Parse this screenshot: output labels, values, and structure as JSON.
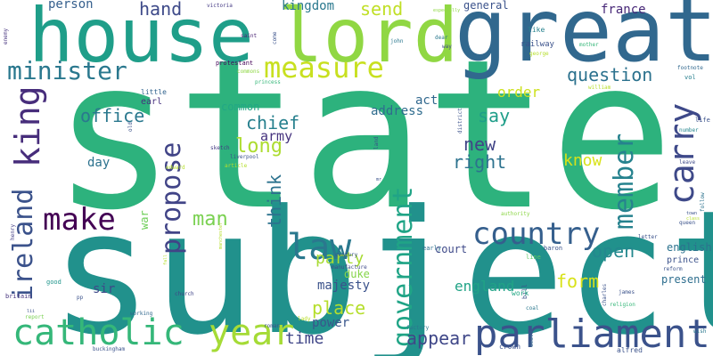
{
  "words": [
    {
      "text": "state",
      "color": "#2db27d"
    },
    {
      "text": "subject",
      "color": "#21918c"
    },
    {
      "text": "great",
      "color": "#31688e"
    },
    {
      "text": "house",
      "color": "#1f9e89"
    },
    {
      "text": "lord",
      "color": "#90d743"
    },
    {
      "text": "parliament",
      "color": "#3b528b"
    },
    {
      "text": "catholic",
      "color": "#35b779"
    },
    {
      "text": "year",
      "color": "#a5db36"
    },
    {
      "text": "government",
      "color": "#20a486"
    },
    {
      "text": "country",
      "color": "#355f8d"
    },
    {
      "text": "law",
      "color": "#2a788e"
    },
    {
      "text": "make",
      "color": "#440154"
    },
    {
      "text": "measure",
      "color": "#c8e020"
    },
    {
      "text": "minister",
      "color": "#2a788e"
    },
    {
      "text": "king",
      "color": "#472d7b"
    },
    {
      "text": "ireland",
      "color": "#3b528b"
    },
    {
      "text": "propose",
      "color": "#414487"
    },
    {
      "text": "carry",
      "color": "#3e4989"
    },
    {
      "text": "member",
      "color": "#26828e"
    },
    {
      "text": "question",
      "color": "#2c728e"
    },
    {
      "text": "office",
      "color": "#2a788e"
    },
    {
      "text": "chief",
      "color": "#27808e"
    },
    {
      "text": "army",
      "color": "#46337e"
    },
    {
      "text": "long",
      "color": "#addc30"
    },
    {
      "text": "man",
      "color": "#7ad151"
    },
    {
      "text": "think",
      "color": "#2c728e"
    },
    {
      "text": "party",
      "color": "#a8db34"
    },
    {
      "text": "majesty",
      "color": "#3b528b"
    },
    {
      "text": "place",
      "color": "#b5de2b"
    },
    {
      "text": "power",
      "color": "#39568c"
    },
    {
      "text": "time",
      "color": "#404688"
    },
    {
      "text": "appear",
      "color": "#3f4788"
    },
    {
      "text": "form",
      "color": "#d8e219"
    },
    {
      "text": "open",
      "color": "#23888e"
    },
    {
      "text": "england",
      "color": "#20a386"
    },
    {
      "text": "present",
      "color": "#2e6e8e"
    },
    {
      "text": "new",
      "color": "#414487"
    },
    {
      "text": "right",
      "color": "#2c728e"
    },
    {
      "text": "know",
      "color": "#d8e219"
    },
    {
      "text": "say",
      "color": "#1f9e89"
    },
    {
      "text": "act",
      "color": "#31688e"
    },
    {
      "text": "order",
      "color": "#cde11d"
    },
    {
      "text": "general",
      "color": "#3b528b"
    },
    {
      "text": "france",
      "color": "#482878"
    },
    {
      "text": "send",
      "color": "#c0df25"
    },
    {
      "text": "hand",
      "color": "#3e4a89"
    },
    {
      "text": "person",
      "color": "#355f8d"
    },
    {
      "text": "kingdom",
      "color": "#2a788e"
    },
    {
      "text": "address",
      "color": "#2f6c8e"
    },
    {
      "text": "common",
      "color": "#22a785"
    },
    {
      "text": "day",
      "color": "#2c728e"
    },
    {
      "text": "war",
      "color": "#6ece58"
    },
    {
      "text": "court",
      "color": "#3e4989"
    },
    {
      "text": "sir",
      "color": "#3f4889"
    },
    {
      "text": "duke",
      "color": "#86d549"
    },
    {
      "text": "english",
      "color": "#2c728e"
    },
    {
      "text": "prince",
      "color": "#3b528b"
    },
    {
      "text": "earl",
      "color": "#46327e"
    },
    {
      "text": "railway",
      "color": "#3b528b"
    },
    {
      "text": "like",
      "color": "#26828e"
    },
    {
      "text": "little",
      "color": "#32648e"
    },
    {
      "text": "protestant",
      "color": "#450559"
    },
    {
      "text": "victoria",
      "color": "#443983"
    },
    {
      "text": "john",
      "color": "#2a788e"
    },
    {
      "text": "saint",
      "color": "#482173"
    },
    {
      "text": "commons",
      "color": "#8fd744"
    },
    {
      "text": "princess",
      "color": "#35b779"
    },
    {
      "text": "william",
      "color": "#b8de29"
    },
    {
      "text": "footnote",
      "color": "#31688e"
    },
    {
      "text": "vol",
      "color": "#277f8e"
    },
    {
      "text": "life",
      "color": "#3b528b"
    },
    {
      "text": "number",
      "color": "#24868e"
    },
    {
      "text": "leave",
      "color": "#3e4a89"
    },
    {
      "text": "queen",
      "color": "#3b528b"
    },
    {
      "text": "follow",
      "color": "#2c728e"
    },
    {
      "text": "henry",
      "color": "#433e85"
    },
    {
      "text": "edward",
      "color": "#b5de2b"
    },
    {
      "text": "sketch",
      "color": "#443a83"
    },
    {
      "text": "liverpool",
      "color": "#3b528b"
    },
    {
      "text": "article",
      "color": "#b5de2b"
    },
    {
      "text": "land",
      "color": "#3b528b"
    },
    {
      "text": "district",
      "color": "#3b528b"
    },
    {
      "text": "authority",
      "color": "#8bd646"
    },
    {
      "text": "century",
      "color": "#3a548c"
    },
    {
      "text": "early",
      "color": "#2d708e"
    },
    {
      "text": "line",
      "color": "#5ec962"
    },
    {
      "text": "baron",
      "color": "#3b528b"
    },
    {
      "text": "manufacture",
      "color": "#3e4989"
    },
    {
      "text": "bill",
      "color": "#3b528b"
    },
    {
      "text": "work",
      "color": "#22a884"
    },
    {
      "text": "church",
      "color": "#414487"
    },
    {
      "text": "good",
      "color": "#1f958b"
    },
    {
      "text": "britain",
      "color": "#46337e"
    },
    {
      "text": "report",
      "color": "#7ad151"
    },
    {
      "text": "working",
      "color": "#31688e"
    },
    {
      "text": "lady",
      "color": "#b8de29"
    },
    {
      "text": "roman",
      "color": "#3b528b"
    },
    {
      "text": "factory",
      "color": "#2a788e"
    },
    {
      "text": "crown",
      "color": "#3b528b"
    },
    {
      "text": "alfred",
      "color": "#3b528b"
    },
    {
      "text": "buckingham",
      "color": "#3b528b"
    },
    {
      "text": "charles",
      "color": "#3b528b"
    },
    {
      "text": "james",
      "color": "#3b528b"
    },
    {
      "text": "religion",
      "color": "#35b779"
    },
    {
      "text": "coal",
      "color": "#2a788e"
    },
    {
      "text": "death",
      "color": "#31688e"
    },
    {
      "text": "enemy",
      "color": "#46337e"
    },
    {
      "text": "especially",
      "color": "#8fd744"
    },
    {
      "text": "dear",
      "color": "#2a788e"
    },
    {
      "text": "way",
      "color": "#3e4989"
    },
    {
      "text": "george",
      "color": "#b5de2b"
    },
    {
      "text": "mother",
      "color": "#35b779"
    },
    {
      "text": "town",
      "color": "#3b528b"
    },
    {
      "text": "class",
      "color": "#b5de2b"
    },
    {
      "text": "letter",
      "color": "#3b528b"
    },
    {
      "text": "reform",
      "color": "#3b528b"
    },
    {
      "text": "wish",
      "color": "#2a788e"
    },
    {
      "text": "old",
      "color": "#3b528b"
    },
    {
      "text": "come",
      "color": "#3b528b"
    },
    {
      "text": "fall",
      "color": "#b5de2b"
    },
    {
      "text": "manchester",
      "color": "#b5de2b"
    },
    {
      "text": "lii",
      "color": "#3b528b"
    },
    {
      "text": "pp",
      "color": "#3b528b"
    },
    {
      "text": "mr",
      "color": "#3b528b"
    }
  ]
}
